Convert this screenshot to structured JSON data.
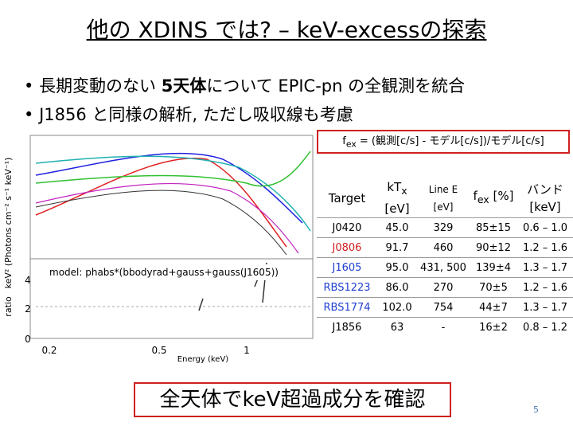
{
  "title": "他の XDINS では? – keV-excessの探索",
  "bullets": [
    [
      "長期変動のない ",
      "5天体",
      "について EPIC-pn の全観測を統合"
    ],
    [
      "J1856 と同様の解析, ただし吸収線も考慮"
    ]
  ],
  "figure": {
    "y_label": "keV² (Photons cm⁻² s⁻¹ keV⁻¹)",
    "ratio_label": "ratio",
    "ratio_ticks": [
      "4",
      "2",
      "0"
    ],
    "x_ticks": [
      "0.2",
      "0.5",
      "1"
    ],
    "x_label": "Energy (keV)",
    "model": "model: phabs*(bbodyrad+gauss+gauss(J1605))"
  },
  "formula": [
    "f",
    "ex",
    " = (観測[c/s] - モデル[c/s])/モデル[c/s]"
  ],
  "table": {
    "header": [
      [
        "Target"
      ],
      [
        "kT",
        "x",
        "[eV]"
      ],
      [
        "Line E",
        "[eV]"
      ],
      [
        "f",
        "ex",
        " [%]"
      ],
      [
        "バンド",
        "[keV]"
      ]
    ],
    "rows": [
      [
        "J0420",
        "45.0",
        "329",
        "85±15",
        "0.6 – 1.0"
      ],
      [
        "J0806",
        "91.7",
        "460",
        "90±12",
        "1.2 – 1.6"
      ],
      [
        "J1605",
        "95.0",
        "431, 500",
        "139±4",
        "1.3 – 1.7"
      ],
      [
        "RBS1223",
        "86.0",
        "270",
        "70±5",
        "1.2 – 1.6"
      ],
      [
        "RBS1774",
        "102.0",
        "754",
        "44±7",
        "1.3 – 1.7"
      ],
      [
        "J1856",
        "63",
        "-",
        "16±2",
        "0.8 – 1.2"
      ]
    ]
  },
  "conclusion": "全天体でkeV超過成分を確認",
  "page_number": "5"
}
